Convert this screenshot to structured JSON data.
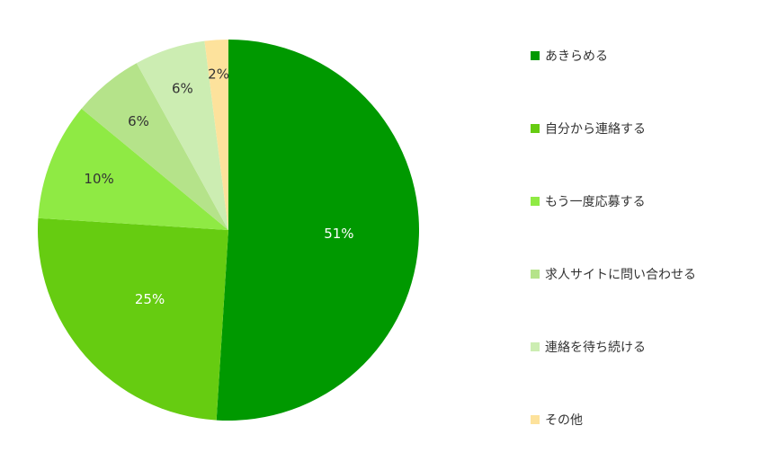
{
  "chart_data": {
    "type": "pie",
    "title": "",
    "start_angle_deg": 0,
    "direction": "clockwise",
    "slices": [
      {
        "label": "あきらめる",
        "value": 51,
        "display": "51%",
        "color": "#009900"
      },
      {
        "label": "自分から連絡する",
        "value": 25,
        "display": "25%",
        "color": "#66cc11"
      },
      {
        "label": "もう一度応募する",
        "value": 10,
        "display": "10%",
        "color": "#8fea44"
      },
      {
        "label": "求人サイトに問い合わせる",
        "value": 6,
        "display": "6%",
        "color": "#b5e38a"
      },
      {
        "label": "連絡を待ち続ける",
        "value": 6,
        "display": "6%",
        "color": "#ccedb2"
      },
      {
        "label": "その他",
        "value": 2,
        "display": "2%",
        "color": "#fde29c"
      }
    ],
    "legend": {
      "placement": "right"
    },
    "data_label_colors": {
      "dark_slice_text": "#ffffff",
      "light_slice_text": "#333333"
    }
  }
}
